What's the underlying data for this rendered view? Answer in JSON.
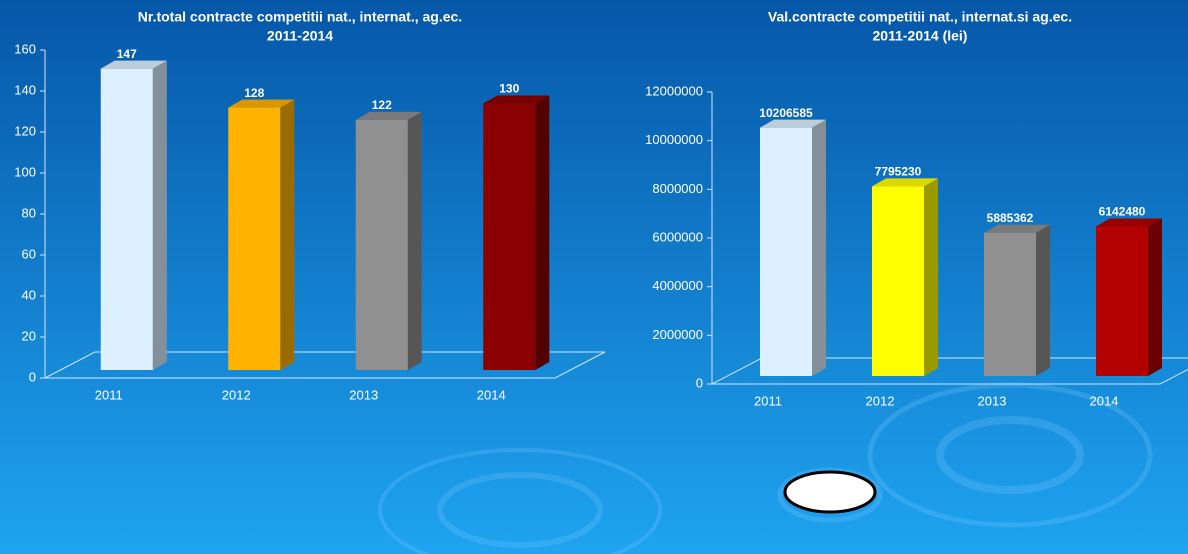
{
  "chart_data": [
    {
      "type": "bar",
      "title": [
        "Nr.total contracte competitii nat., internat., ag.ec.",
        "2011-2014"
      ],
      "categories": [
        "2011",
        "2012",
        "2013",
        "2014"
      ],
      "values": [
        147,
        128,
        122,
        130
      ],
      "colors": [
        "#ddf0ff",
        "#ffb300",
        "#909090",
        "#8b0000"
      ],
      "ylim": [
        0,
        160
      ],
      "yticks": [
        0,
        20,
        40,
        60,
        80,
        100,
        120,
        140,
        160
      ]
    },
    {
      "type": "bar",
      "title": [
        "Val.contracte competitii nat., internat.si ag.ec.",
        "2011-2014 (lei)"
      ],
      "categories": [
        "2011",
        "2012",
        "2013",
        "2014"
      ],
      "values": [
        10206585,
        7795230,
        5885362,
        6142480
      ],
      "colors": [
        "#ddf0ff",
        "#ffff00",
        "#909090",
        "#b30000"
      ],
      "ylim": [
        0,
        12000000
      ],
      "yticks": [
        0,
        2000000,
        4000000,
        6000000,
        8000000,
        10000000,
        12000000
      ]
    }
  ]
}
